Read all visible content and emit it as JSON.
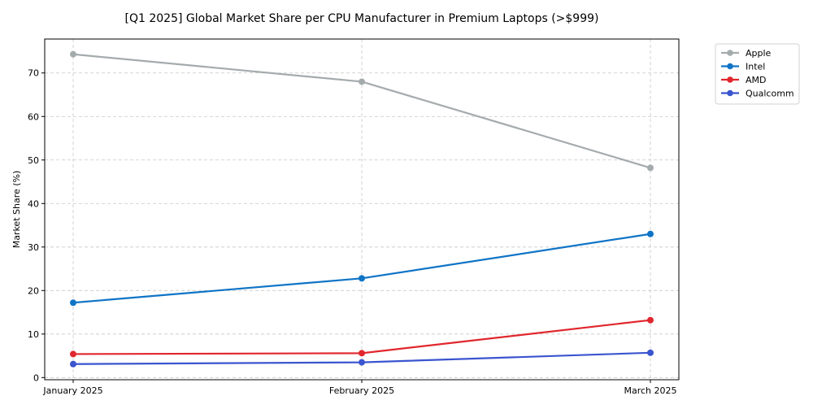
{
  "chart_data": {
    "type": "line",
    "title": "[Q1 2025] Global Market Share per CPU Manufacturer in Premium Laptops (>$999)",
    "xlabel": "",
    "ylabel": "Market Share (%)",
    "categories": [
      "January 2025",
      "February 2025",
      "March 2025"
    ],
    "ylim": [
      -0.5,
      77.8
    ],
    "yticks": [
      0,
      10,
      20,
      30,
      40,
      50,
      60,
      70
    ],
    "grid": true,
    "legend_position": "outside-top-right",
    "series": [
      {
        "name": "Apple",
        "color": "#a4abad",
        "values": [
          74.3,
          68.0,
          48.2
        ]
      },
      {
        "name": "Intel",
        "color": "#0f74c6",
        "values": [
          17.2,
          22.8,
          33.0
        ]
      },
      {
        "name": "AMD",
        "color": "#e1262d",
        "values": [
          5.4,
          5.6,
          13.2
        ]
      },
      {
        "name": "Qualcomm",
        "color": "#3a55cf",
        "values": [
          3.1,
          3.5,
          5.7
        ]
      }
    ]
  }
}
